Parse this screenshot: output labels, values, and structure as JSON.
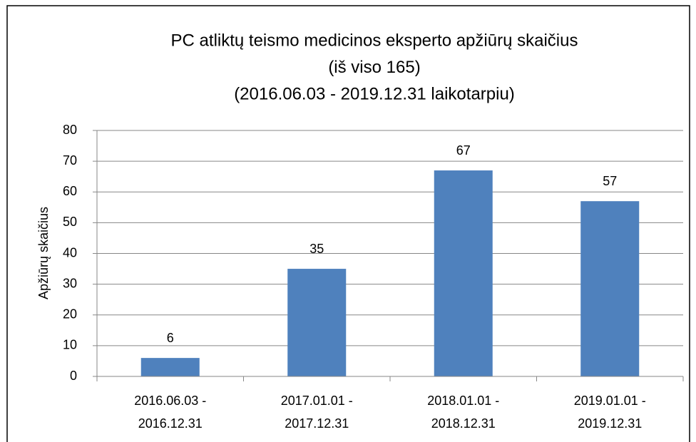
{
  "chart_data": {
    "type": "bar",
    "title": [
      "PC atliktų teismo medicinos eksperto apžiūrų skaičius",
      "(iš viso 165)",
      "(2016.06.03 - 2019.12.31 laikotarpiu)"
    ],
    "y_label": "Apžiūrų skaičius",
    "categories": [
      "2016.06.03 - 2016.12.31",
      "2017.01.01 - 2017.12.31",
      "2018.01.01 - 2018.12.31",
      "2019.01.01 - 2019.12.31"
    ],
    "values": [
      6,
      35,
      67,
      57
    ],
    "color": "#4f81bd",
    "ylim": [
      0,
      80
    ],
    "yticks": [
      0,
      10,
      20,
      30,
      40,
      50,
      60,
      70,
      80
    ],
    "grid": true
  }
}
